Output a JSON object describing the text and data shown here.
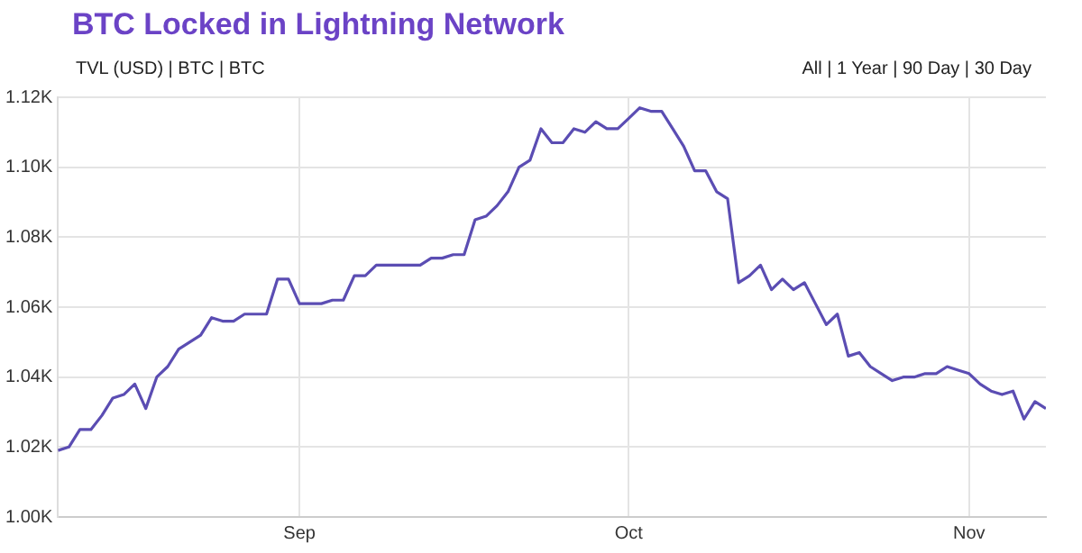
{
  "chart_data": {
    "type": "line",
    "title": "BTC Locked in Lightning Network",
    "annotations": [
      "TVL (USD) | BTC | BTC",
      "All | 1 Year | 90 Day | 30 Day"
    ],
    "x": [
      "--08-10",
      "--08-11",
      "--08-12",
      "--08-13",
      "--08-14",
      "--08-15",
      "--08-16",
      "--08-17",
      "--08-18",
      "--08-19",
      "--08-20",
      "--08-21",
      "--08-22",
      "--08-23",
      "--08-24",
      "--08-25",
      "--08-26",
      "--08-27",
      "--08-28",
      "--08-29",
      "--08-30",
      "--08-31",
      "--09-01",
      "--09-02",
      "--09-03",
      "--09-04",
      "--09-05",
      "--09-06",
      "--09-07",
      "--09-08",
      "--09-09",
      "--09-10",
      "--09-11",
      "--09-12",
      "--09-13",
      "--09-14",
      "--09-15",
      "--09-16",
      "--09-17",
      "--09-18",
      "--09-19",
      "--09-20",
      "--09-21",
      "--09-22",
      "--09-23",
      "--09-24",
      "--09-25",
      "--09-26",
      "--09-27",
      "--09-28",
      "--09-29",
      "--09-30",
      "--10-01",
      "--10-02",
      "--10-03",
      "--10-04",
      "--10-05",
      "--10-06",
      "--10-07",
      "--10-08",
      "--10-09",
      "--10-10",
      "--10-11",
      "--10-12",
      "--10-13",
      "--10-14",
      "--10-15",
      "--10-16",
      "--10-17",
      "--10-18",
      "--10-19",
      "--10-20",
      "--10-21",
      "--10-22",
      "--10-23",
      "--10-24",
      "--10-25",
      "--10-26",
      "--10-27",
      "--10-28",
      "--10-29",
      "--10-30",
      "--10-31",
      "--11-01",
      "--11-02",
      "--11-03",
      "--11-04",
      "--11-05",
      "--11-06",
      "--11-07",
      "--11-08"
    ],
    "series": [
      {
        "color": "#5b4db3",
        "values": [
          1019,
          1020,
          1025,
          1025,
          1029,
          1034,
          1035,
          1038,
          1031,
          1040,
          1043,
          1048,
          1050,
          1052,
          1057,
          1056,
          1056,
          1058,
          1058,
          1058,
          1068,
          1068,
          1061,
          1061,
          1061,
          1062,
          1062,
          1069,
          1069,
          1072,
          1072,
          1072,
          1072,
          1072,
          1074,
          1074,
          1075,
          1075,
          1085,
          1086,
          1089,
          1093,
          1100,
          1102,
          1111,
          1107,
          1107,
          1111,
          1110,
          1113,
          1111,
          1111,
          1114,
          1117,
          1116,
          1116,
          1111,
          1106,
          1099,
          1099,
          1093,
          1091,
          1067,
          1069,
          1072,
          1065,
          1068,
          1065,
          1067,
          1061,
          1055,
          1058,
          1046,
          1047,
          1043,
          1041,
          1039,
          1040,
          1040,
          1041,
          1041,
          1043,
          1042,
          1041,
          1038,
          1036,
          1035,
          1036,
          1028,
          1033,
          1031
        ]
      }
    ],
    "xlim": [
      "--08-10",
      "--11-08"
    ],
    "xticks": [
      {
        "value": "--09-01",
        "label": "Sep"
      },
      {
        "value": "--10-01",
        "label": "Oct"
      },
      {
        "value": "--11-01",
        "label": "Nov"
      }
    ],
    "ylim": [
      1000,
      1120
    ],
    "yticks": [
      {
        "value": 1000,
        "label": "1.00K"
      },
      {
        "value": 1020,
        "label": "1.02K"
      },
      {
        "value": 1040,
        "label": "1.04K"
      },
      {
        "value": 1060,
        "label": "1.06K"
      },
      {
        "value": 1080,
        "label": "1.08K"
      },
      {
        "value": 1100,
        "label": "1.10K"
      },
      {
        "value": 1120,
        "label": "1.12K"
      }
    ],
    "grid": true,
    "legend": false,
    "marker": "none",
    "line_style": "solid"
  }
}
